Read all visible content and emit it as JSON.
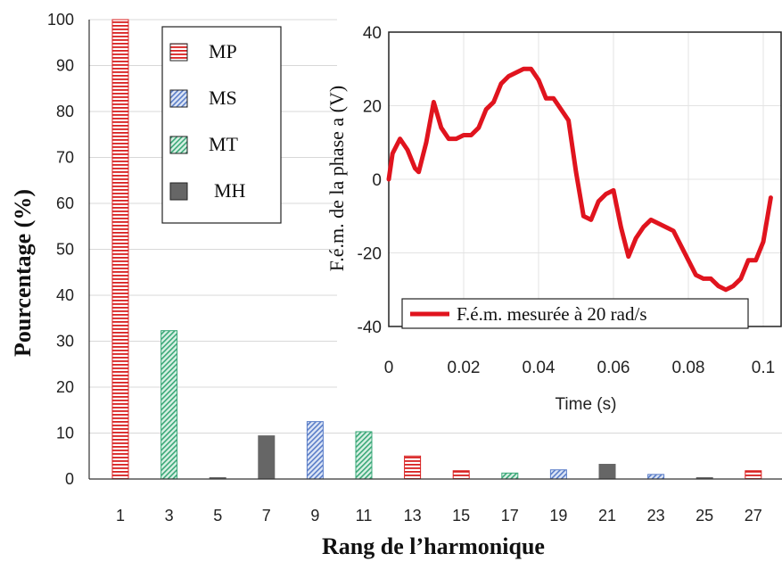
{
  "chart_data": [
    {
      "type": "bar",
      "title": "",
      "xlabel": "Rang de l’harmonique",
      "ylabel": "Pourcentage (%)",
      "ylim": [
        0,
        100
      ],
      "yticks": [
        "0",
        "10",
        "20",
        "30",
        "40",
        "50",
        "60",
        "70",
        "80",
        "90",
        "100"
      ],
      "categories": [
        "1",
        "3",
        "5",
        "7",
        "9",
        "11",
        "13",
        "15",
        "17",
        "19",
        "21",
        "23",
        "25",
        "27"
      ],
      "grid": true,
      "legend_position": "top-left",
      "series": [
        {
          "name": "MP",
          "color": "#d82020",
          "pattern": "horizontal-lines",
          "values": [
            100,
            null,
            null,
            null,
            null,
            null,
            5,
            1.8,
            null,
            null,
            null,
            null,
            null,
            1.8
          ]
        },
        {
          "name": "MS",
          "color": "#5a7dc8",
          "pattern": "diagonal-lines",
          "values": [
            null,
            null,
            null,
            null,
            12.5,
            null,
            null,
            null,
            null,
            2,
            null,
            1,
            null,
            null
          ]
        },
        {
          "name": "MT",
          "color": "#3aa878",
          "pattern": "diagonal-lines",
          "values": [
            null,
            32.3,
            null,
            null,
            null,
            10.3,
            null,
            null,
            1.3,
            null,
            null,
            null,
            null,
            null
          ]
        },
        {
          "name": "MH",
          "color": "#666666",
          "pattern": "solid",
          "values": [
            null,
            null,
            0.3,
            9.4,
            null,
            null,
            null,
            null,
            null,
            null,
            3.2,
            null,
            0.3,
            null
          ]
        }
      ]
    },
    {
      "type": "line",
      "title": "",
      "xlabel": "Time (s)",
      "ylabel": "F.é.m. de la phase a (V)",
      "xlim": [
        0,
        0.1
      ],
      "ylim": [
        -40,
        40
      ],
      "xticks": [
        "0",
        "0.02",
        "0.04",
        "0.06",
        "0.08",
        "0.1"
      ],
      "yticks": [
        "-40",
        "-20",
        "0",
        "20",
        "40"
      ],
      "legend_position": "bottom-left",
      "series": [
        {
          "name": "F.é.m. mesurée à 20 rad/s",
          "color": "#e0141e",
          "x": [
            0,
            0.001,
            0.003,
            0.005,
            0.007,
            0.008,
            0.01,
            0.012,
            0.014,
            0.016,
            0.018,
            0.02,
            0.022,
            0.024,
            0.026,
            0.028,
            0.03,
            0.032,
            0.034,
            0.036,
            0.038,
            0.04,
            0.042,
            0.044,
            0.046,
            0.048,
            0.05,
            0.052,
            0.054,
            0.056,
            0.058,
            0.06,
            0.062,
            0.064,
            0.066,
            0.068,
            0.07,
            0.072,
            0.074,
            0.076,
            0.078,
            0.08,
            0.082,
            0.084,
            0.086,
            0.088,
            0.09,
            0.092,
            0.094,
            0.096,
            0.098,
            0.1,
            0.102
          ],
          "y": [
            0,
            7,
            11,
            8,
            3,
            2,
            10,
            21,
            14,
            11,
            11,
            12,
            12,
            14,
            19,
            21,
            26,
            28,
            29,
            30,
            30,
            27,
            22,
            22,
            19,
            16,
            2,
            -10,
            -11,
            -6,
            -4,
            -3,
            -13,
            -21,
            -16,
            -13,
            -11,
            -12,
            -13,
            -14,
            -18,
            -22,
            -26,
            -27,
            -27,
            -29,
            -30,
            -29,
            -27,
            -22,
            -22,
            -17,
            -5
          ]
        }
      ]
    }
  ],
  "colors": {
    "grid": "#d8d8d8",
    "axis": "#333333",
    "line": "#e0141e"
  }
}
